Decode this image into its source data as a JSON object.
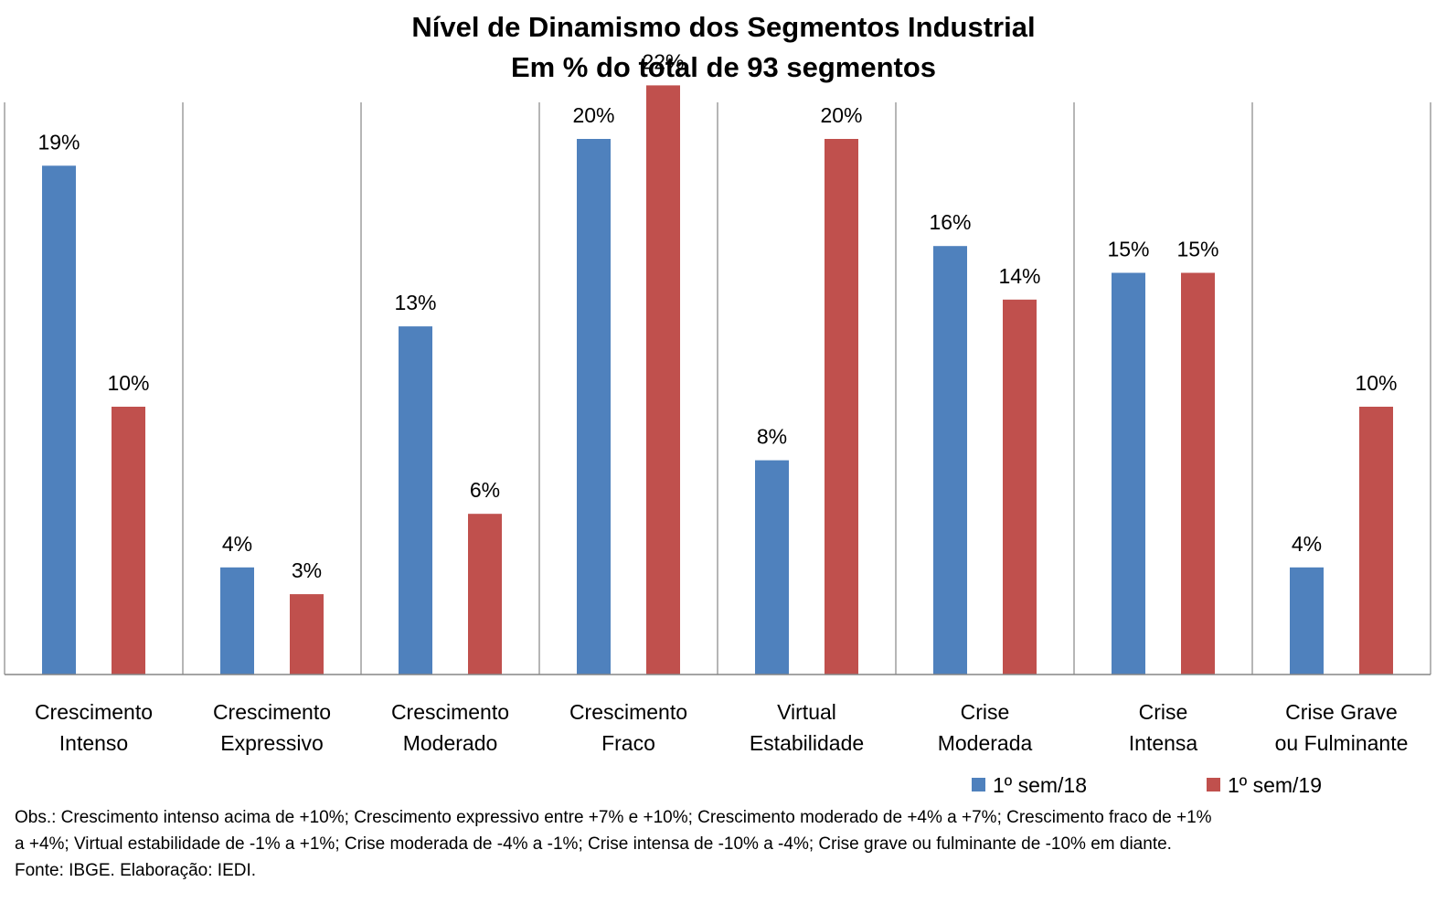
{
  "chart_data": {
    "type": "bar",
    "title": "Nível de Dinamismo dos Segmentos Industrial",
    "subtitle": "Em % do total de 93 segmentos",
    "categories": [
      [
        "Crescimento",
        "Intenso"
      ],
      [
        "Crescimento",
        "Expressivo"
      ],
      [
        "Crescimento",
        "Moderado"
      ],
      [
        "Crescimento",
        "Fraco"
      ],
      [
        "Virtual",
        "Estabilidade"
      ],
      [
        "Crise",
        "Moderada"
      ],
      [
        "Crise",
        "Intensa"
      ],
      [
        "Crise Grave",
        "ou Fulminante"
      ]
    ],
    "series": [
      {
        "name": "1º sem/18",
        "color": "#4f81bd",
        "values": [
          19,
          4,
          13,
          20,
          8,
          16,
          15,
          4
        ],
        "labels": [
          "19%",
          "4%",
          "13%",
          "20%",
          "8%",
          "16%",
          "15%",
          "4%"
        ]
      },
      {
        "name": "1º sem/19",
        "color": "#c0504d",
        "values": [
          10,
          3,
          6,
          22,
          20,
          14,
          15,
          10
        ],
        "labels": [
          "10%",
          "3%",
          "6%",
          "22%",
          "20%",
          "14%",
          "15%",
          "10%"
        ]
      }
    ],
    "ylim": [
      0,
      25
    ],
    "grid": false,
    "legend_position": "bottom-right",
    "data_labels": true
  },
  "footnote": {
    "line1": "Obs.: Crescimento intenso acima de +10%; Crescimento expressivo entre +7% e +10%; Crescimento moderado de +4% a +7%; Crescimento fraco de +1%",
    "line2": "a +4%; Virtual estabilidade de -1% a +1%; Crise moderada de -4% a -1%; Crise intensa de -10% a -4%; Crise grave ou fulminante de -10% em diante.",
    "line3": "Fonte: IBGE. Elaboração: IEDI."
  }
}
